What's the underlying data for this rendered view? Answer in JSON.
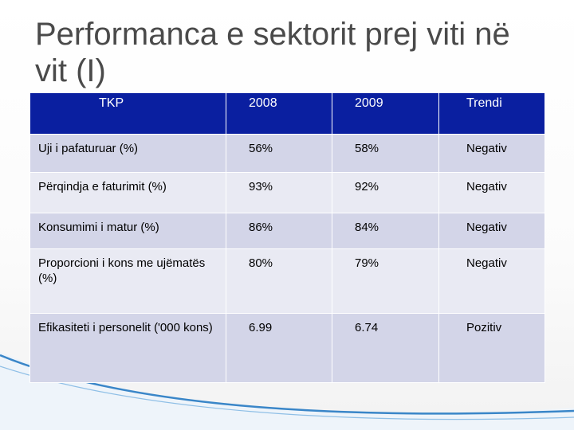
{
  "title": "Performanca e sektorit prej viti në vit (I)",
  "table": {
    "headers": [
      "TKP",
      "2008",
      "2009",
      "Trendi"
    ],
    "rows": [
      {
        "indicator": "Uji i pafaturuar  (%)",
        "y2008": "56%",
        "y2009": "58%",
        "trend": "Negativ"
      },
      {
        "indicator": "Përqindja e faturimit (%)",
        "y2008": "93%",
        "y2009": "92%",
        "trend": "Negativ"
      },
      {
        "indicator": "Konsumimi i matur (%)",
        "y2008": "86%",
        "y2009": "84%",
        "trend": "Negativ"
      },
      {
        "indicator": "Proporcioni i kons me ujëmatës (%)",
        "y2008": "80%",
        "y2009": "79%",
        "trend": "Negativ"
      },
      {
        "indicator": "Efikasiteti i personelit ('000 kons)",
        "y2008": "6.99",
        "y2009": "6.74",
        "trend": "Pozitiv"
      }
    ]
  },
  "colors": {
    "header_bg": "#0a1fa0",
    "row_dark": "#d3d5e8",
    "row_light": "#e9eaf3",
    "title_text": "#4a4a4a",
    "swoosh": "#3a86c8"
  }
}
